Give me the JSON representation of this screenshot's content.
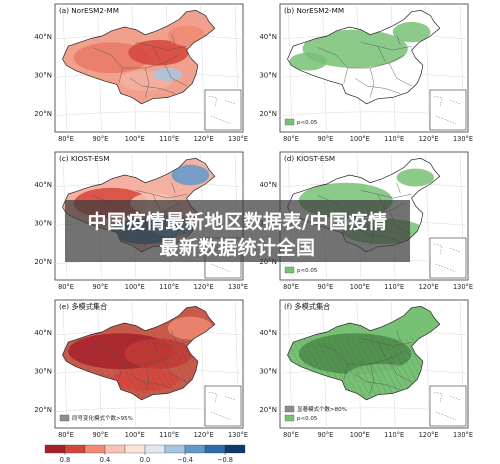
{
  "panels": [
    {
      "label": "(a) NorESM2-MM",
      "type": "diverging"
    },
    {
      "label": "(b) NorESM2-MM",
      "type": "significance",
      "legend": [
        "p<0.05"
      ]
    },
    {
      "label": "(c) KIOST-ESM",
      "type": "diverging"
    },
    {
      "label": "(d) KIOST-ESM",
      "type": "significance",
      "legend": [
        "p<0.05"
      ]
    },
    {
      "label": "(e) 多模式集合",
      "type": "diverging",
      "legend": [
        "同号变化模式个数>95%"
      ]
    },
    {
      "label": "(f) 多模式集合",
      "type": "significance",
      "legend": [
        "显著模式个数>80%",
        "p<0.05"
      ]
    }
  ],
  "axes": {
    "lat_ticks": [
      "40°N",
      "30°N",
      "20°N"
    ],
    "lon_ticks": [
      "80°E",
      "90°E",
      "100°E",
      "110°E",
      "120°E",
      "130°E"
    ]
  },
  "colorbar": {
    "ticks": [
      "0.8",
      "0.4",
      "0.0",
      "−0.4",
      "−0.8"
    ],
    "colors": [
      "#a8202a",
      "#d6453b",
      "#ee8a73",
      "#f7c4b4",
      "#fbe4dc",
      "#dde8f2",
      "#a7c7e1",
      "#5e9acb",
      "#2c6aa8",
      "#10386e"
    ]
  },
  "banner": {
    "line1": "中国疫情最新地区数据表/中国疫情",
    "line2": "最新数据统计全国"
  },
  "colors": {
    "sig_green": "#77c174",
    "dark_green": "#4b8a49",
    "hatch_gray": "#8d8d8d"
  }
}
